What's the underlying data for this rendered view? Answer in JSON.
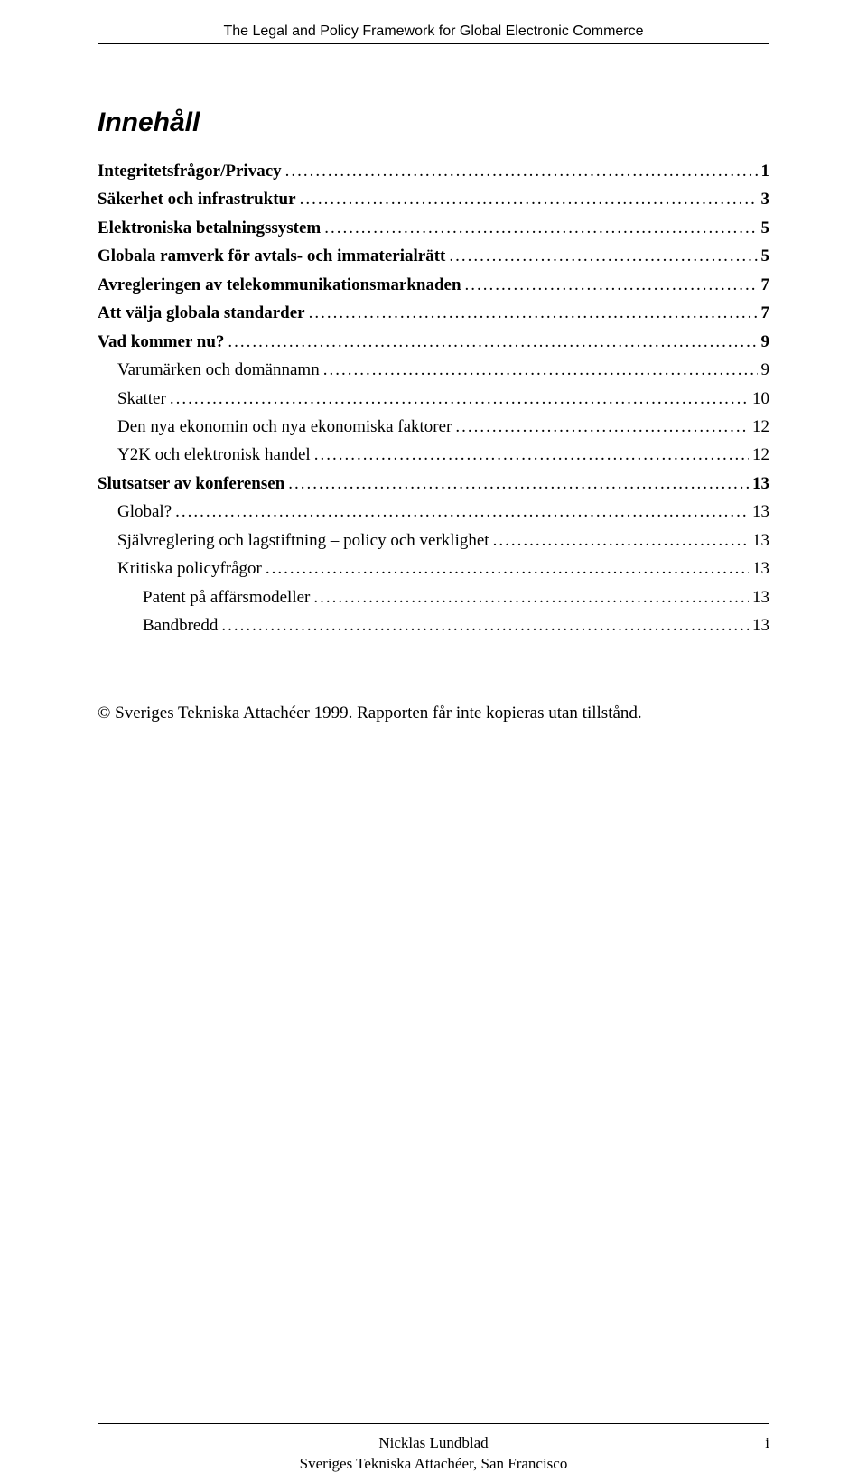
{
  "header": {
    "running_title": "The Legal and Policy Framework for Global Electronic Commerce"
  },
  "title": "Innehåll",
  "toc": [
    {
      "level": 0,
      "label": "Integritetsfrågor/Privacy",
      "page": "1"
    },
    {
      "level": 0,
      "label": "Säkerhet och infrastruktur",
      "page": "3"
    },
    {
      "level": 0,
      "label": "Elektroniska betalningssystem",
      "page": "5"
    },
    {
      "level": 0,
      "label": "Globala ramverk för avtals- och immaterialrätt",
      "page": "5"
    },
    {
      "level": 0,
      "label": "Avregleringen av telekommunikationsmarknaden",
      "page": "7"
    },
    {
      "level": 0,
      "label": "Att välja globala standarder",
      "page": "7"
    },
    {
      "level": 0,
      "label": "Vad kommer nu?",
      "page": "9"
    },
    {
      "level": 1,
      "label": "Varumärken och domännamn",
      "page": "9"
    },
    {
      "level": 1,
      "label": "Skatter",
      "page": "10"
    },
    {
      "level": 1,
      "label": "Den nya ekonomin och nya ekonomiska faktorer",
      "page": "12"
    },
    {
      "level": 1,
      "label": "Y2K och elektronisk handel",
      "page": "12"
    },
    {
      "level": 0,
      "label": "Slutsatser av konferensen",
      "page": "13"
    },
    {
      "level": 1,
      "label": "Global?",
      "page": "13"
    },
    {
      "level": 1,
      "label": "Självreglering och lagstiftning – policy och verklighet",
      "page": "13"
    },
    {
      "level": 1,
      "label": "Kritiska policyfrågor",
      "page": "13"
    },
    {
      "level": 2,
      "label": "Patent på affärsmodeller",
      "page": "13"
    },
    {
      "level": 2,
      "label": "Bandbredd",
      "page": "13"
    }
  ],
  "copyright": "© Sveriges Tekniska Attachéer 1999. Rapporten får inte kopieras utan tillstånd.",
  "footer": {
    "line1": "Nicklas Lundblad",
    "line2": "Sveriges Tekniska Attachéer, San Francisco",
    "page_num": "i"
  }
}
